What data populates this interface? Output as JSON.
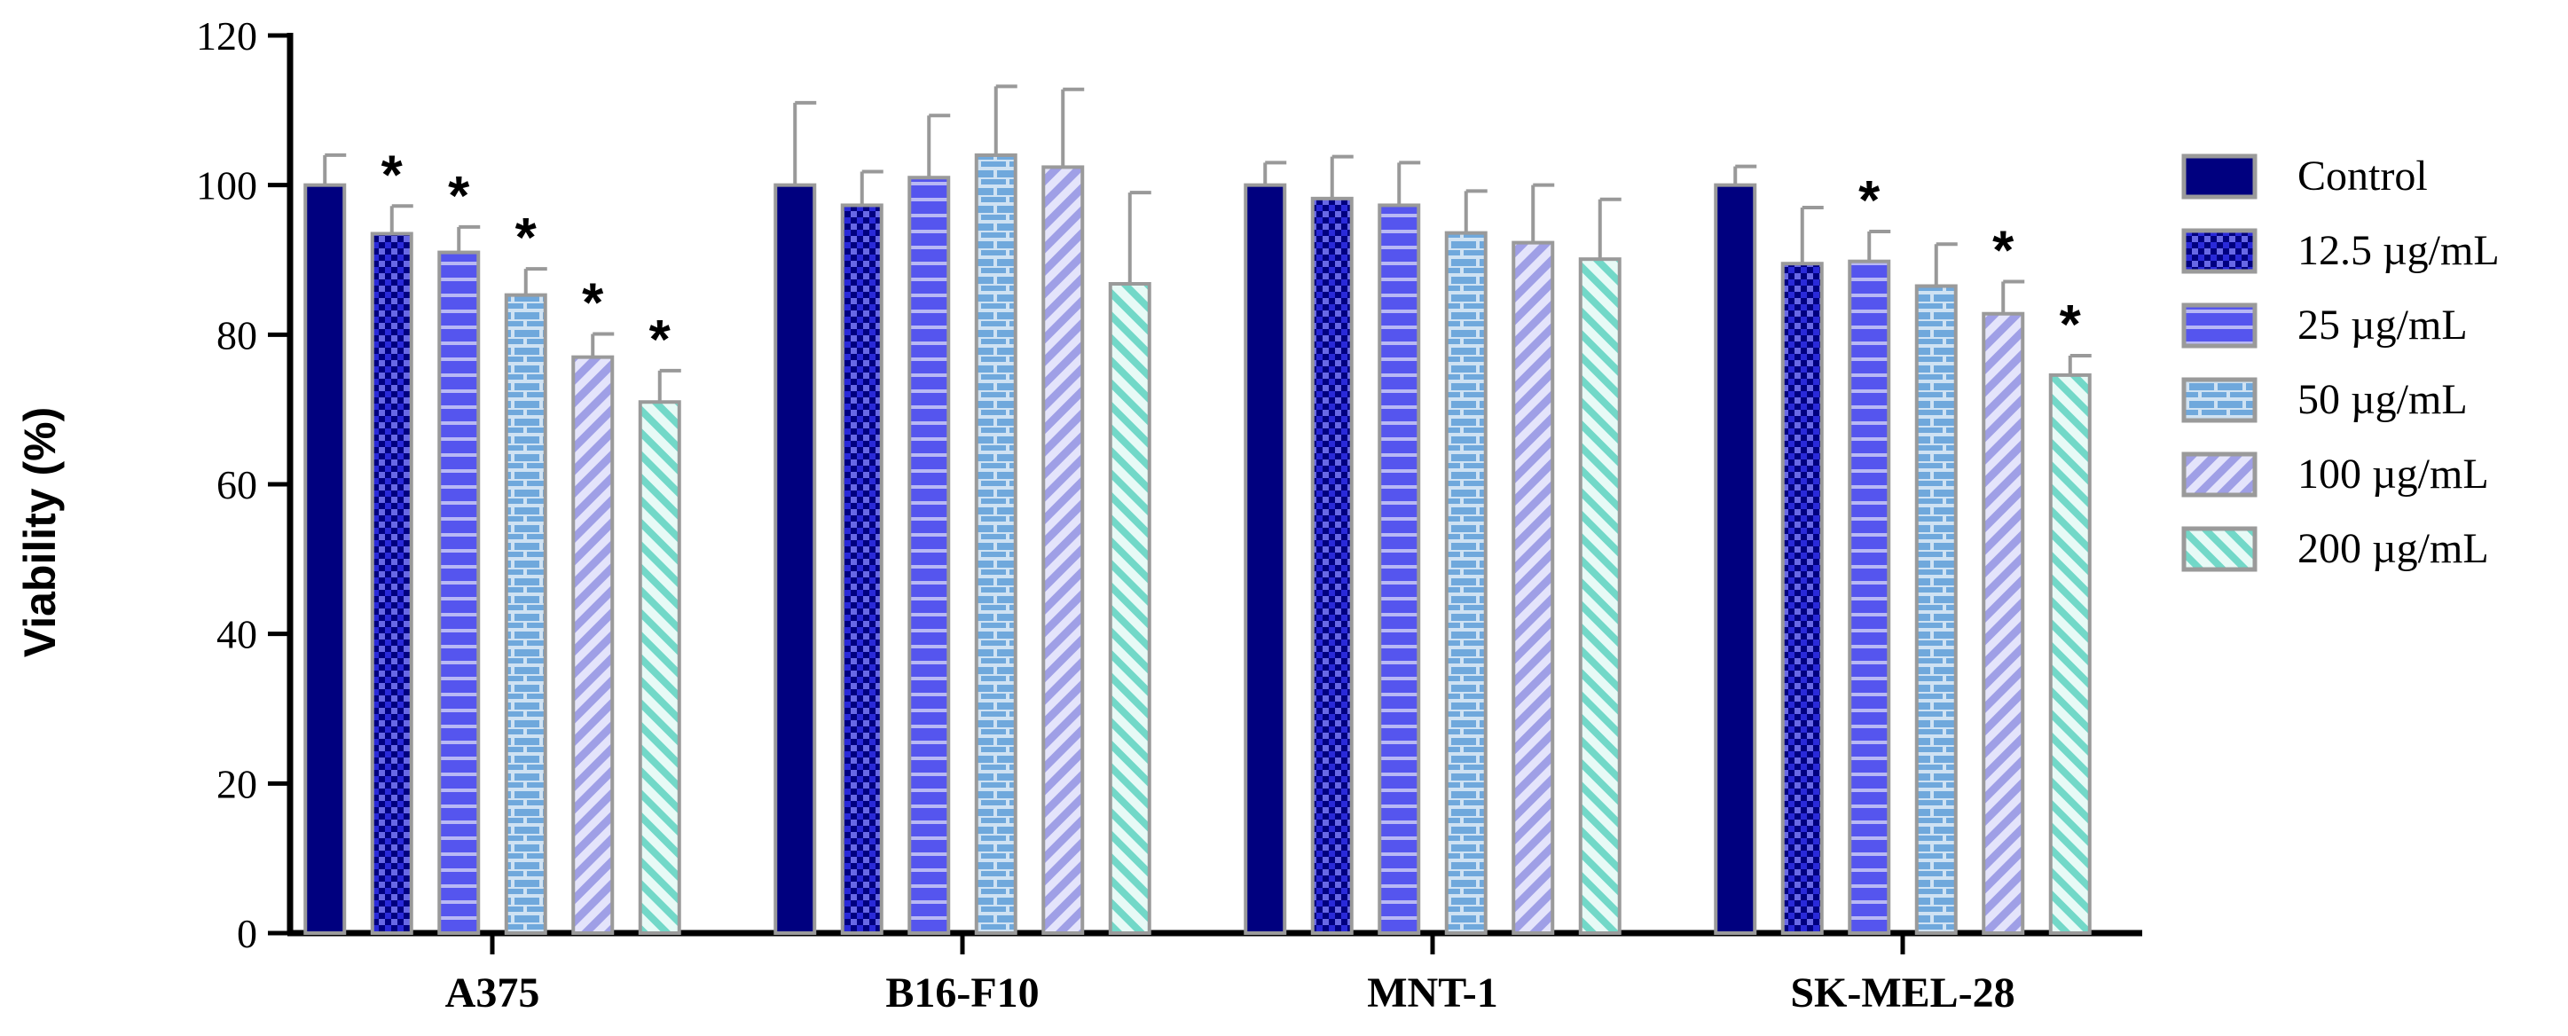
{
  "chart_data": {
    "type": "bar",
    "title": "",
    "xlabel": "",
    "ylabel": "Viability (%)",
    "ylim": [
      0,
      120
    ],
    "yticks": [
      "0",
      "20",
      "40",
      "60",
      "80",
      "100",
      "120"
    ],
    "categories": [
      "A375",
      "B16-F10",
      "MNT-1",
      "SK-MEL-28"
    ],
    "legend_position": "right",
    "series": [
      {
        "name": "Control",
        "color": "#00007f",
        "pattern": "solid",
        "values": [
          100,
          100,
          100,
          100
        ],
        "errors": [
          4,
          11,
          3,
          2.5
        ],
        "significant": [
          false,
          false,
          false,
          false
        ]
      },
      {
        "name": "12.5 µg/mL",
        "color": "#2a2ad9",
        "pattern": "checker",
        "values": [
          93.5,
          97.3,
          98.2,
          89.5
        ],
        "errors": [
          3.7,
          4.5,
          5.6,
          7.5
        ],
        "significant": [
          true,
          false,
          false,
          false
        ]
      },
      {
        "name": "25 µg/mL",
        "color": "#5555ee",
        "pattern": "horizontal",
        "values": [
          91,
          101,
          97.3,
          89.8
        ],
        "errors": [
          3.4,
          8.3,
          5.7,
          4
        ],
        "significant": [
          true,
          false,
          false,
          true
        ]
      },
      {
        "name": "50 µg/mL",
        "color": "#6fa8dc",
        "pattern": "brick",
        "values": [
          85.3,
          104,
          93.6,
          86.5
        ],
        "errors": [
          3.5,
          9.2,
          5.6,
          5.6
        ],
        "significant": [
          true,
          false,
          false,
          false
        ]
      },
      {
        "name": "100 µg/mL",
        "color": "#b3b3ee",
        "pattern": "diag-up",
        "values": [
          77,
          102.4,
          92.3,
          82.8
        ],
        "errors": [
          3.1,
          10.4,
          7.7,
          4.3
        ],
        "significant": [
          true,
          false,
          false,
          true
        ]
      },
      {
        "name": "200 µg/mL",
        "color": "#a6ebe0",
        "pattern": "diag-down",
        "values": [
          71,
          86.8,
          90.1,
          74.6
        ],
        "errors": [
          4.2,
          12.2,
          8,
          2.6
        ],
        "significant": [
          true,
          false,
          false,
          true
        ]
      }
    ],
    "significance_marker": "*"
  }
}
